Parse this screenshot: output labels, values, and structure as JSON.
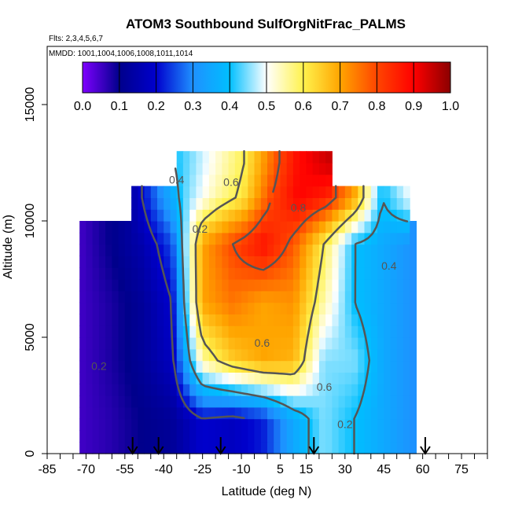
{
  "chart_data": {
    "type": "heatmap",
    "title": "ATOM3 Southbound SulfOrgNitFrac_PALMS",
    "subtitle_flights": "Flts: 2,3,4,5,6,7",
    "subtitle_dates": "MMDD: 1001,1004,1006,1008,1011,1014",
    "xlabel": "Latitude (deg N)",
    "ylabel": "Altitude (m)",
    "xlim": [
      -85,
      85
    ],
    "ylim": [
      0,
      17500
    ],
    "x_tick_labels": [
      "-85",
      "-70",
      "-55",
      "-40",
      "-25",
      "-10",
      "5",
      "15",
      "30",
      "45",
      "60",
      "75"
    ],
    "x_tick_values": [
      -85,
      -70,
      -55,
      -40,
      -25,
      -10,
      5,
      15,
      30,
      45,
      60,
      75
    ],
    "y_tick_labels": [
      "0",
      "5000",
      "10000",
      "15000"
    ],
    "y_tick_values": [
      0,
      5000,
      10000,
      15000
    ],
    "colorbar": {
      "min": 0.0,
      "max": 1.0,
      "tick_labels": [
        "0.0",
        "0.1",
        "0.2",
        "0.3",
        "0.4",
        "0.5",
        "0.6",
        "0.7",
        "0.8",
        "0.9",
        "1.0"
      ],
      "tick_values": [
        0,
        0.1,
        0.2,
        0.3,
        0.4,
        0.5,
        0.6,
        0.7,
        0.8,
        0.9,
        1.0
      ],
      "colors": [
        "#7f00ff",
        "#00008b",
        "#0000cd",
        "#1e90ff",
        "#00bfff",
        "#ffffff",
        "#fff24d",
        "#ffa500",
        "#ff4500",
        "#ff0000",
        "#8b0000"
      ]
    },
    "contour_labels": [
      {
        "text": "0.4",
        "lat": -35,
        "alt": 11600
      },
      {
        "text": "0.2",
        "lat": -26,
        "alt": 9500
      },
      {
        "text": "0.6",
        "lat": -14,
        "alt": 11500
      },
      {
        "text": "0.8",
        "lat": 12,
        "alt": 10400
      },
      {
        "text": "0.4",
        "lat": 47,
        "alt": 7900
      },
      {
        "text": "0.6",
        "lat": -2,
        "alt": 4600
      },
      {
        "text": "0.6",
        "lat": 22,
        "alt": 2700
      },
      {
        "text": "0.2",
        "lat": -65,
        "alt": 3600
      },
      {
        "text": "0.2",
        "lat": 30,
        "alt": 1100
      }
    ],
    "flight_markers_lat": [
      -52,
      -42,
      -18,
      18,
      61
    ],
    "data_rows": [
      {
        "alt": 12500,
        "lat_range": [
          -36,
          25
        ],
        "values": [
          0.4,
          0.45,
          0.5,
          0.55,
          0.6,
          0.7,
          0.8,
          0.88,
          0.92,
          0.95
        ]
      },
      {
        "alt": 11000,
        "lat_range": [
          -52,
          55
        ],
        "values": [
          0.15,
          0.3,
          0.45,
          0.55,
          0.62,
          0.8,
          0.9,
          0.85,
          0.7,
          0.4,
          0.5
        ]
      },
      {
        "alt": 9000,
        "lat_range": [
          -72,
          57
        ],
        "values": [
          0.05,
          0.1,
          0.15,
          0.25,
          0.7,
          0.8,
          0.88,
          0.78,
          0.6,
          0.4,
          0.35,
          0.3
        ]
      },
      {
        "alt": 6500,
        "lat_range": [
          -72,
          57
        ],
        "values": [
          0.05,
          0.08,
          0.12,
          0.2,
          0.7,
          0.75,
          0.7,
          0.72,
          0.55,
          0.4,
          0.35,
          0.3
        ]
      },
      {
        "alt": 4000,
        "lat_range": [
          -72,
          57
        ],
        "values": [
          0.05,
          0.08,
          0.12,
          0.18,
          0.55,
          0.65,
          0.7,
          0.68,
          0.45,
          0.45,
          0.35,
          0.3
        ]
      },
      {
        "alt": 1500,
        "lat_range": [
          -72,
          57
        ],
        "values": [
          0.05,
          0.07,
          0.1,
          0.12,
          0.2,
          0.18,
          0.22,
          0.35,
          0.45,
          0.4,
          0.35,
          0.3
        ]
      }
    ]
  }
}
